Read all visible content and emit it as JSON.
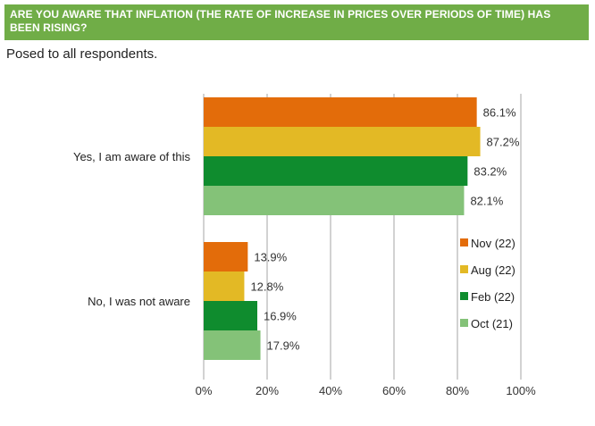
{
  "header": {
    "question": "ARE YOU AWARE THAT INFLATION (THE RATE OF INCREASE IN PRICES OVER PERIODS OF TIME) HAS BEEN RISING?",
    "subtitle": "Posed to all respondents."
  },
  "colors": {
    "banner": "#70ad47",
    "gridline": "#a6a6a6"
  },
  "chart_data": {
    "type": "bar",
    "orientation": "horizontal",
    "categories": [
      "Yes, I am aware of this",
      "No, I was not aware"
    ],
    "series": [
      {
        "name": "Nov (22)",
        "values": [
          86.1,
          13.9
        ],
        "color": "#e36c0a"
      },
      {
        "name": "Aug (22)",
        "values": [
          87.2,
          12.8
        ],
        "color": "#e3b925"
      },
      {
        "name": "Feb (22)",
        "values": [
          83.2,
          16.9
        ],
        "color": "#0f8c2e"
      },
      {
        "name": "Oct (21)",
        "values": [
          82.1,
          17.9
        ],
        "color": "#84c278"
      }
    ],
    "data_labels": [
      [
        "86.1%",
        "13.9%"
      ],
      [
        "87.2%",
        "12.8%"
      ],
      [
        "83.2%",
        "16.9%"
      ],
      [
        "82.1%",
        "17.9%"
      ]
    ],
    "xlim": [
      0,
      100
    ],
    "xticks": [
      "0%",
      "20%",
      "40%",
      "60%",
      "80%",
      "100%"
    ],
    "grid": true,
    "legend_position": "right"
  }
}
